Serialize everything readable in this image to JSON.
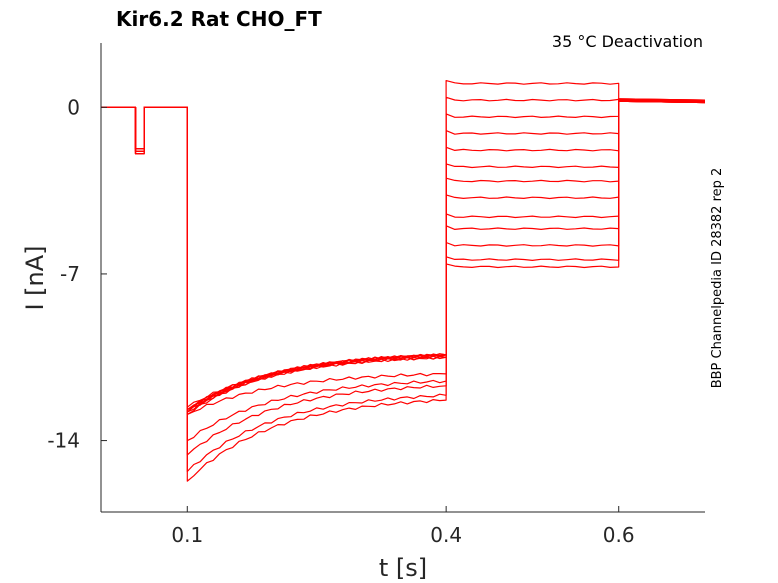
{
  "title": "Kir6.2  Rat  CHO_FT",
  "annotation": "35 °C  Deactivation",
  "side_label": "BBP Channelpedia ID 28382 rep 2",
  "chart_data": {
    "type": "line",
    "title": "Kir6.2  Rat  CHO_FT",
    "xlabel": "t [s]",
    "ylabel": "I [nA]",
    "xlim": [
      0.0,
      0.7
    ],
    "ylim": [
      -17,
      2.7
    ],
    "xticks": [
      0.1,
      0.4,
      0.6
    ],
    "xtick_labels": [
      "0.1",
      "0.4",
      "0.6"
    ],
    "yticks": [
      0,
      -7,
      -14
    ],
    "ytick_labels": [
      "0",
      "-7",
      "-14"
    ],
    "grid": false,
    "line_color": "#ff0000",
    "protocol_times": {
      "brief_pulse": [
        0.04,
        0.05
      ],
      "main_step": [
        0.1,
        0.4
      ],
      "test_step": [
        0.4,
        0.6
      ],
      "end": 0.7
    },
    "baseline": 0.0,
    "brief_pulse_levels": [
      -1.75,
      -1.85,
      -1.95
    ],
    "series": [
      {
        "main_start": -12.8,
        "main_end": -10.4,
        "test_level": 1.0,
        "tail": 0.3
      },
      {
        "main_start": -12.7,
        "main_end": -10.4,
        "test_level": 0.3,
        "tail": 0.2
      },
      {
        "main_start": -12.9,
        "main_end": -10.4,
        "test_level": -0.4,
        "tail": 0.25
      },
      {
        "main_start": -12.6,
        "main_end": -10.5,
        "test_level": -1.1,
        "tail": 0.2
      },
      {
        "main_start": -12.7,
        "main_end": -10.4,
        "test_level": -1.8,
        "tail": 0.3
      },
      {
        "main_start": -12.8,
        "main_end": -10.5,
        "test_level": -2.5,
        "tail": 0.2
      },
      {
        "main_start": -12.7,
        "main_end": -10.4,
        "test_level": -3.1,
        "tail": 0.2
      },
      {
        "main_start": -12.8,
        "main_end": -10.5,
        "test_level": -3.8,
        "tail": 0.2
      },
      {
        "main_start": -12.9,
        "main_end": -11.2,
        "test_level": -4.6,
        "tail": 0.25
      },
      {
        "main_start": -14.0,
        "main_end": -11.5,
        "test_level": -5.1,
        "tail": 0.2
      },
      {
        "main_start": -14.6,
        "main_end": -11.7,
        "test_level": -5.8,
        "tail": 0.2
      },
      {
        "main_start": -15.3,
        "main_end": -12.1,
        "test_level": -6.4,
        "tail": 0.3
      },
      {
        "main_start": -15.7,
        "main_end": -12.3,
        "test_level": -6.7,
        "tail": 0.25
      }
    ]
  }
}
